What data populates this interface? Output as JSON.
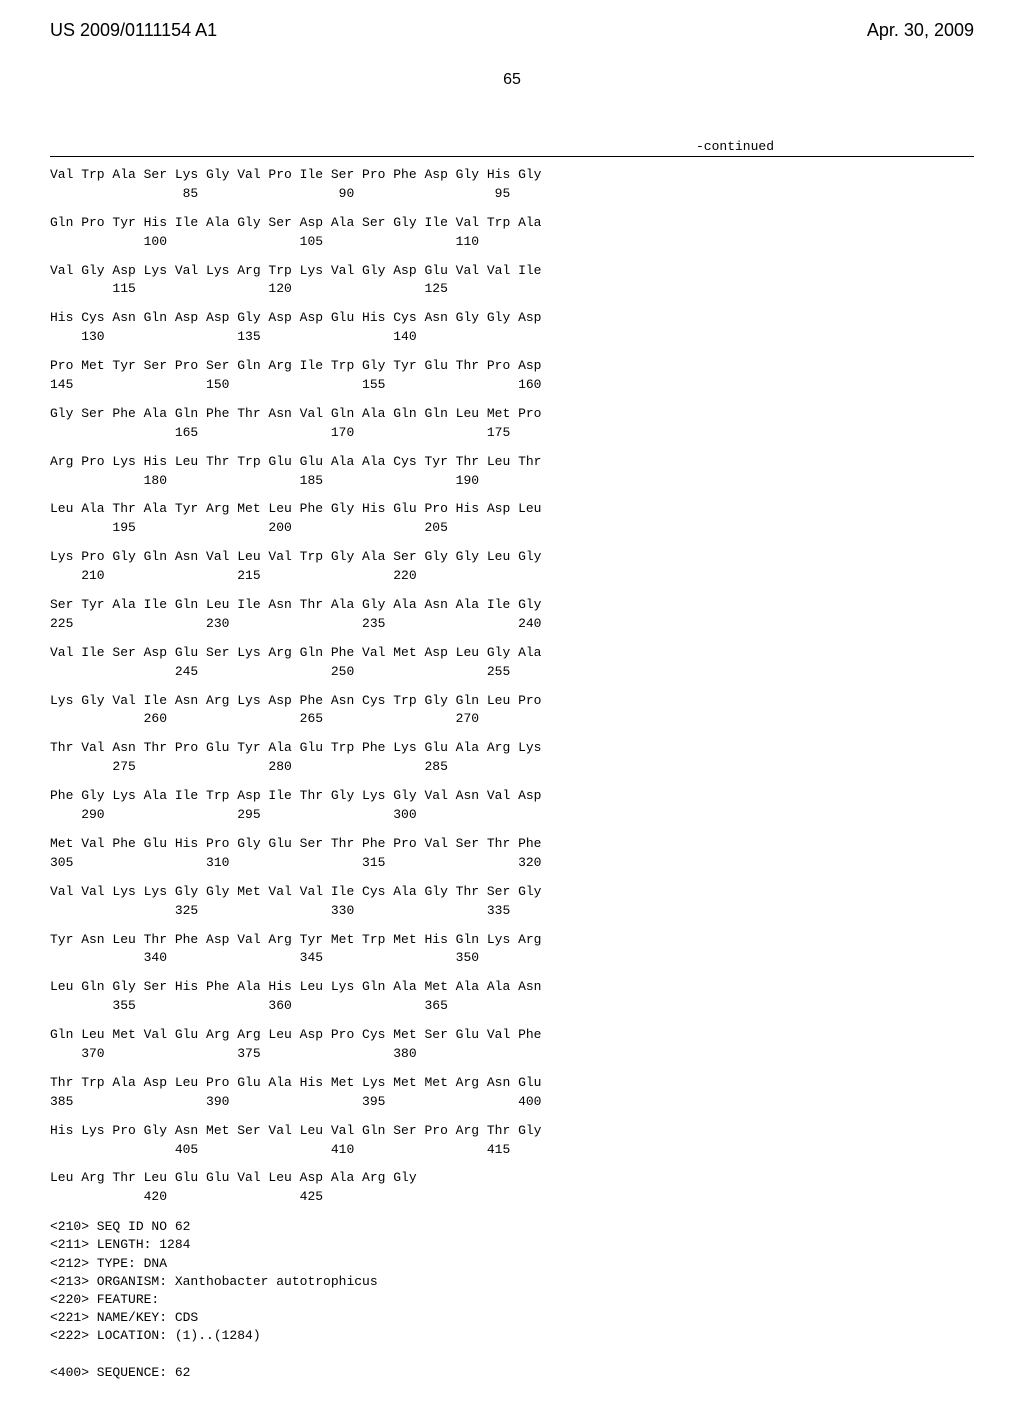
{
  "header": {
    "patent_id": "US 2009/0111154 A1",
    "patent_date": "Apr. 30, 2009"
  },
  "page_number": "65",
  "continued_label": "-continued",
  "sequence": {
    "rows": [
      {
        "aa": "Val Trp Ala Ser Lys Gly Val Pro Ile Ser Pro Phe Asp Gly His Gly",
        "pos": "                 85                  90                  95"
      },
      {
        "aa": "Gln Pro Tyr His Ile Ala Gly Ser Asp Ala Ser Gly Ile Val Trp Ala",
        "pos": "            100                 105                 110"
      },
      {
        "aa": "Val Gly Asp Lys Val Lys Arg Trp Lys Val Gly Asp Glu Val Val Ile",
        "pos": "        115                 120                 125"
      },
      {
        "aa": "His Cys Asn Gln Asp Asp Gly Asp Asp Glu His Cys Asn Gly Gly Asp",
        "pos": "    130                 135                 140"
      },
      {
        "aa": "Pro Met Tyr Ser Pro Ser Gln Arg Ile Trp Gly Tyr Glu Thr Pro Asp",
        "pos": "145                 150                 155                 160"
      },
      {
        "aa": "Gly Ser Phe Ala Gln Phe Thr Asn Val Gln Ala Gln Gln Leu Met Pro",
        "pos": "                165                 170                 175"
      },
      {
        "aa": "Arg Pro Lys His Leu Thr Trp Glu Glu Ala Ala Cys Tyr Thr Leu Thr",
        "pos": "            180                 185                 190"
      },
      {
        "aa": "Leu Ala Thr Ala Tyr Arg Met Leu Phe Gly His Glu Pro His Asp Leu",
        "pos": "        195                 200                 205"
      },
      {
        "aa": "Lys Pro Gly Gln Asn Val Leu Val Trp Gly Ala Ser Gly Gly Leu Gly",
        "pos": "    210                 215                 220"
      },
      {
        "aa": "Ser Tyr Ala Ile Gln Leu Ile Asn Thr Ala Gly Ala Asn Ala Ile Gly",
        "pos": "225                 230                 235                 240"
      },
      {
        "aa": "Val Ile Ser Asp Glu Ser Lys Arg Gln Phe Val Met Asp Leu Gly Ala",
        "pos": "                245                 250                 255"
      },
      {
        "aa": "Lys Gly Val Ile Asn Arg Lys Asp Phe Asn Cys Trp Gly Gln Leu Pro",
        "pos": "            260                 265                 270"
      },
      {
        "aa": "Thr Val Asn Thr Pro Glu Tyr Ala Glu Trp Phe Lys Glu Ala Arg Lys",
        "pos": "        275                 280                 285"
      },
      {
        "aa": "Phe Gly Lys Ala Ile Trp Asp Ile Thr Gly Lys Gly Val Asn Val Asp",
        "pos": "    290                 295                 300"
      },
      {
        "aa": "Met Val Phe Glu His Pro Gly Glu Ser Thr Phe Pro Val Ser Thr Phe",
        "pos": "305                 310                 315                 320"
      },
      {
        "aa": "Val Val Lys Lys Gly Gly Met Val Val Ile Cys Ala Gly Thr Ser Gly",
        "pos": "                325                 330                 335"
      },
      {
        "aa": "Tyr Asn Leu Thr Phe Asp Val Arg Tyr Met Trp Met His Gln Lys Arg",
        "pos": "            340                 345                 350"
      },
      {
        "aa": "Leu Gln Gly Ser His Phe Ala His Leu Lys Gln Ala Met Ala Ala Asn",
        "pos": "        355                 360                 365"
      },
      {
        "aa": "Gln Leu Met Val Glu Arg Arg Leu Asp Pro Cys Met Ser Glu Val Phe",
        "pos": "    370                 375                 380"
      },
      {
        "aa": "Thr Trp Ala Asp Leu Pro Glu Ala His Met Lys Met Met Arg Asn Glu",
        "pos": "385                 390                 395                 400"
      },
      {
        "aa": "His Lys Pro Gly Asn Met Ser Val Leu Val Gln Ser Pro Arg Thr Gly",
        "pos": "                405                 410                 415"
      },
      {
        "aa": "Leu Arg Thr Leu Glu Glu Val Leu Asp Ala Arg Gly",
        "pos": "            420                 425"
      }
    ]
  },
  "metadata": {
    "lines": [
      "<210> SEQ ID NO 62",
      "<211> LENGTH: 1284",
      "<212> TYPE: DNA",
      "<213> ORGANISM: Xanthobacter autotrophicus",
      "<220> FEATURE:",
      "<221> NAME/KEY: CDS",
      "<222> LOCATION: (1)..(1284)",
      "",
      "<400> SEQUENCE: 62"
    ]
  }
}
